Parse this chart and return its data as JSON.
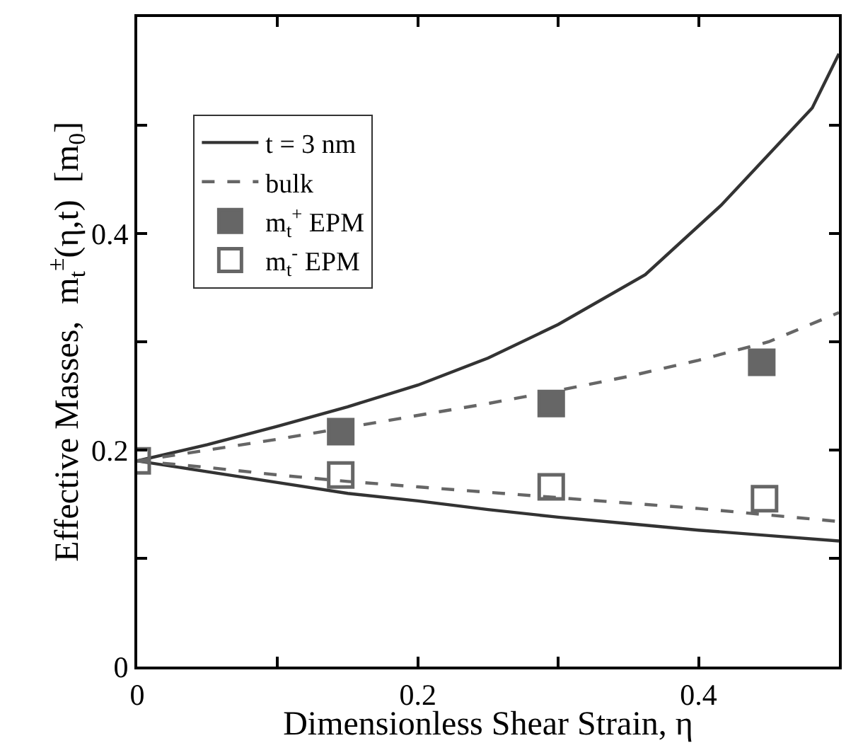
{
  "chart_data": {
    "type": "line",
    "xlabel": "Dimensionless Shear Strain, η",
    "ylabel": "Effective Masses,  m$_{t}$$^{±}$(η,t)  [m$_{0}$]",
    "xlim": [
      0,
      0.5
    ],
    "ylim": [
      0,
      0.6
    ],
    "xticks": [
      0,
      0.2,
      0.4,
      {
        "value": 0.1,
        "label": null
      },
      {
        "value": 0.3,
        "label": null
      }
    ],
    "yticks": [
      0,
      0.2,
      0.4,
      {
        "value": 0.1,
        "label": null
      },
      {
        "value": 0.3,
        "label": null
      },
      {
        "value": 0.5,
        "label": null
      }
    ],
    "legend": "top left",
    "marker": "none",
    "series": [
      {
        "name": "t = 3 nm",
        "color": "#333333",
        "line_style": "solid",
        "x": [
          0,
          0.05,
          0.1,
          0.15,
          0.2,
          0.25,
          0.3,
          0.362,
          0.416,
          0.481,
          0.5
        ],
        "values": [
          0.19,
          0.205,
          0.222,
          0.24,
          0.26,
          0.285,
          0.316,
          0.362,
          0.426,
          0.516,
          0.566
        ]
      },
      {
        "color": "#333333",
        "line_style": "solid",
        "x": [
          0,
          0.05,
          0.1,
          0.15,
          0.2,
          0.25,
          0.3,
          0.35,
          0.4,
          0.45,
          0.5
        ],
        "values": [
          0.19,
          0.18,
          0.17,
          0.16,
          0.153,
          0.145,
          0.138,
          0.132,
          0.126,
          0.121,
          0.116
        ]
      },
      {
        "name": "bulk",
        "color": "#666666",
        "line_style": "dashed",
        "x": [
          0,
          0.05,
          0.1,
          0.15,
          0.2,
          0.25,
          0.3,
          0.35,
          0.4,
          0.45,
          0.5
        ],
        "values": [
          0.19,
          0.2,
          0.21,
          0.221,
          0.232,
          0.243,
          0.255,
          0.268,
          0.283,
          0.3,
          0.327
        ]
      },
      {
        "color": "#666666",
        "line_style": "dashed",
        "x": [
          0,
          0.05,
          0.1,
          0.15,
          0.2,
          0.25,
          0.3,
          0.35,
          0.4,
          0.45,
          0.5
        ],
        "values": [
          0.19,
          0.184,
          0.177,
          0.171,
          0.166,
          0.161,
          0.156,
          0.151,
          0.146,
          0.14,
          0.134
        ]
      },
      {
        "name": "m$_{t}$$^{+}$ EPM",
        "type": "scatter",
        "marker": "square",
        "color": "#666666",
        "x": [
          0.145,
          0.295,
          0.445
        ],
        "values": [
          0.217,
          0.243,
          0.281
        ]
      },
      {
        "name": "m$_{t}$$^{-}$ EPM",
        "type": "scatter",
        "marker": "square-open",
        "color": "#666666",
        "x": [
          0,
          0.145,
          0.295,
          0.447
        ],
        "values": [
          0.19,
          0.177,
          0.166,
          0.155
        ]
      }
    ]
  }
}
